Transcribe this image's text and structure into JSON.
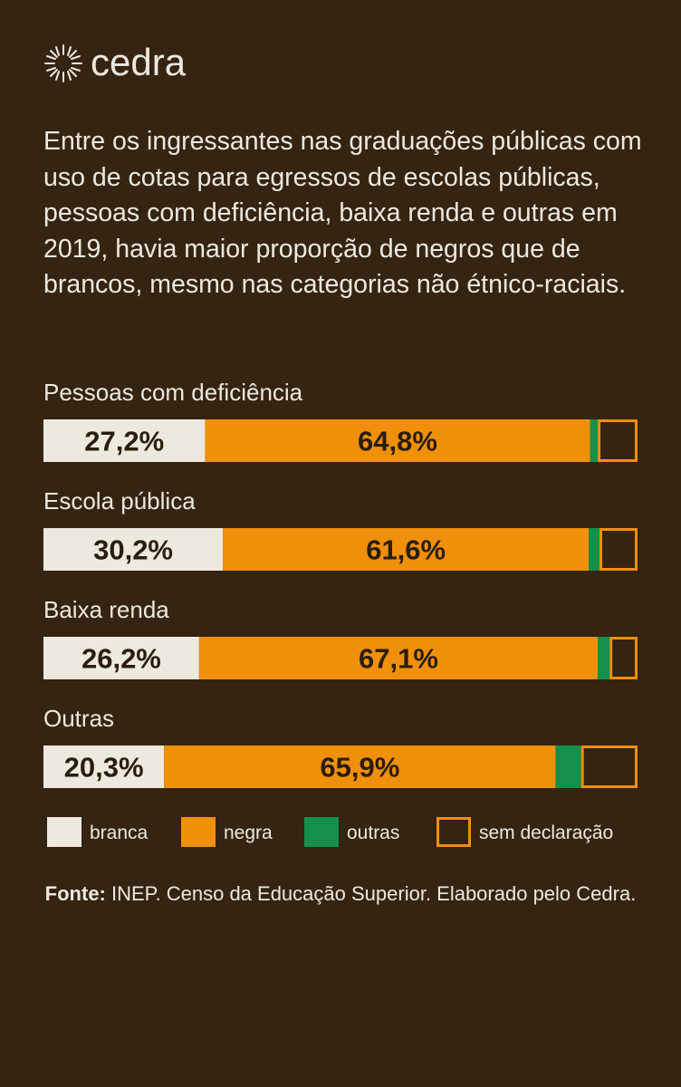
{
  "logo": "cedra",
  "chart_data": {
    "type": "stacked-bar",
    "title": "Entre os ingressantes nas graduações públicas com uso de cotas para egressos de escolas públicas, pessoas com deficiência, baixa renda e outras em 2019, havia maior proporção de negros que de brancos, mesmo nas categorias não étnico-raciais.",
    "categories": [
      "Pessoas com deficiência",
      "Escola pública",
      "Baixa renda",
      "Outras"
    ],
    "xlim": [
      0,
      100
    ],
    "series": [
      {
        "name": "branca",
        "color": "#ede9df",
        "values": [
          27.2,
          30.2,
          26.2,
          20.3
        ],
        "value_labels": [
          "27,2%",
          "30,2%",
          "26,2%",
          "20,3%"
        ]
      },
      {
        "name": "negra",
        "color": "#f0900a",
        "values": [
          64.8,
          61.6,
          67.1,
          65.9
        ],
        "value_labels": [
          "64,8%",
          "61,6%",
          "67,1%",
          "65,9%"
        ]
      },
      {
        "name": "outras",
        "color": "#14904a",
        "values": [
          1.3,
          1.8,
          2.0,
          4.3
        ]
      },
      {
        "name": "sem declaração",
        "color": "#f0900a",
        "outline": true,
        "values": [
          6.7,
          6.4,
          4.7,
          9.5
        ]
      }
    ],
    "source_label": "Fonte:",
    "source": "INEP. Censo da Educação Superior. Elaborado pelo Cedra."
  }
}
